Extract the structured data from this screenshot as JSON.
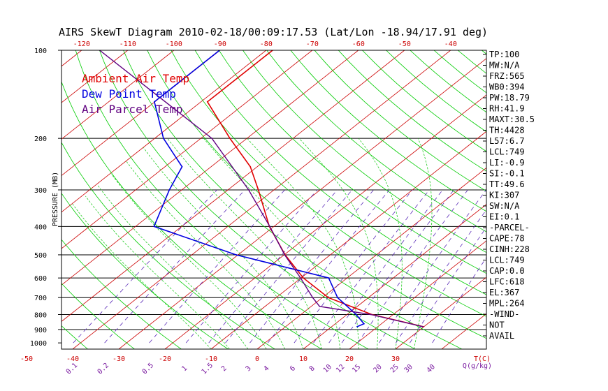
{
  "chart_data": {
    "type": "line",
    "title": "AIRS SkewT Diagram 2010-02-18/00:09:17.53 (Lat/Lon -18.94/17.91 deg)",
    "ylabel": "PRESSURE (MB)",
    "xlabel_bottom": "T(C)",
    "mixing_ratio_label": "Q(g/kg)",
    "pressure_ticks": [
      100,
      200,
      300,
      400,
      500,
      600,
      700,
      800,
      900,
      1000
    ],
    "pressure_lines_labeled": [
      200,
      300,
      400,
      500,
      600,
      700,
      800,
      900
    ],
    "pressure_range": [
      100,
      1000
    ],
    "temp_top_ticks": [
      "-120",
      "-110",
      "-100",
      "-90",
      "-80",
      "-70",
      "-60",
      "-50",
      "-40"
    ],
    "temp_bottom_ticks": [
      "-50",
      "-40",
      "-30",
      "-20",
      "-10",
      "0",
      "10",
      "20",
      "30"
    ],
    "mixing_ratio_labels": [
      "0.1",
      "0.2",
      "0.5",
      "1",
      "1.5",
      "2",
      "3",
      "4",
      "6",
      "8",
      "10",
      "12",
      "15",
      "20",
      "25",
      "30",
      "40"
    ],
    "legend": [
      "Ambient Air Temp",
      "Dew Point Temp",
      "Air Parcel Temp"
    ],
    "colors": {
      "ambient": "#e00000",
      "dewpoint": "#0000e0",
      "parcel": "#600080",
      "isotherm": "#cc0000",
      "dry_adiabat": "#00cc00",
      "moist_adiabat": "#22cc22",
      "mixing_ratio": "#5a2ab8",
      "axis_text_temp": "#cc0000",
      "axis_text_mix": "#7a1aa0"
    },
    "series": [
      {
        "name": "Ambient Air Temp",
        "points": [
          {
            "p": 100,
            "t": -78.6
          },
          {
            "p": 150,
            "t": -78.6
          },
          {
            "p": 200,
            "t": -63.7
          },
          {
            "p": 250,
            "t": -51.5
          },
          {
            "p": 300,
            "t": -43.4
          },
          {
            "p": 400,
            "t": -31.0
          },
          {
            "p": 500,
            "t": -19.8
          },
          {
            "p": 600,
            "t": -9.5
          },
          {
            "p": 700,
            "t": 1.3
          },
          {
            "p": 800,
            "t": 15.4
          },
          {
            "p": 880,
            "t": 29.9
          }
        ]
      },
      {
        "name": "Dew Point Temp",
        "points": [
          {
            "p": 100,
            "t": -90.1
          },
          {
            "p": 150,
            "t": -90.1
          },
          {
            "p": 200,
            "t": -78.1
          },
          {
            "p": 250,
            "t": -66.3
          },
          {
            "p": 300,
            "t": -62.7
          },
          {
            "p": 400,
            "t": -56.0
          },
          {
            "p": 500,
            "t": -30.4
          },
          {
            "p": 600,
            "t": -4.0
          },
          {
            "p": 700,
            "t": 3.3
          },
          {
            "p": 800,
            "t": 12.0
          },
          {
            "p": 860,
            "t": 16.2
          },
          {
            "p": 880,
            "t": 15.5
          }
        ]
      },
      {
        "name": "Air Parcel Temp",
        "points": [
          {
            "p": 100,
            "t": -116.1
          },
          {
            "p": 200,
            "t": -67.6
          },
          {
            "p": 300,
            "t": -45.5
          },
          {
            "p": 400,
            "t": -30.9
          },
          {
            "p": 500,
            "t": -19.9
          },
          {
            "p": 600,
            "t": -10.1
          },
          {
            "p": 700,
            "t": -2.1
          },
          {
            "p": 750,
            "t": 1.8
          },
          {
            "p": 800,
            "t": 15.2
          },
          {
            "p": 880,
            "t": 29.8
          }
        ]
      }
    ]
  },
  "indices": [
    "TP:100",
    "MW:N/A",
    "FRZ:565",
    "WB0:394",
    "PW:18.79",
    "RH:41.9",
    "MAXT:30.5",
    "TH:4428",
    "L57:6.7",
    "LCL:749",
    "LI:-0.9",
    "SI:-0.1",
    "TT:49.6",
    "KI:307",
    "SW:N/A",
    "EI:0.1",
    "-PARCEL-",
    "CAPE:78",
    "CINH:228",
    "LCL:749",
    "CAP:0.0",
    "LFC:618",
    "EL:367",
    "MPL:264",
    "-WIND-",
    "NOT",
    "AVAIL"
  ]
}
